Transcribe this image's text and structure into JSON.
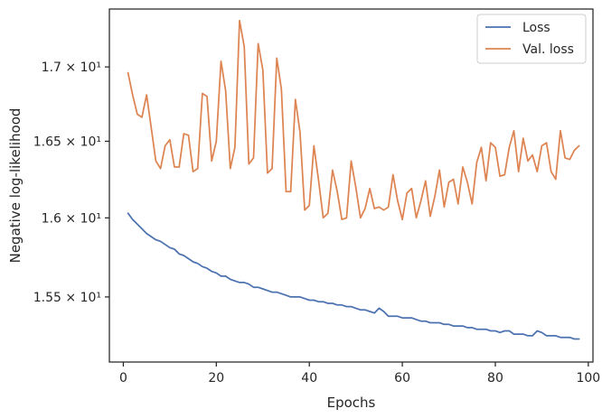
{
  "chart_data": {
    "type": "line",
    "xlabel": "Epochs",
    "ylabel": "Negative log-likelihood",
    "y_scale": "log",
    "xlim": [
      -3,
      101
    ],
    "ylim": [
      15.1,
      17.4
    ],
    "x_ticks": [
      0,
      20,
      40,
      60,
      80,
      100
    ],
    "y_ticks": [
      {
        "value": 15.5,
        "label": "1.55 × 10¹"
      },
      {
        "value": 16.0,
        "label": "1.6 × 10¹"
      },
      {
        "value": 16.5,
        "label": "1.65 × 10¹"
      },
      {
        "value": 17.0,
        "label": "1.7 × 10¹"
      }
    ],
    "grid": false,
    "legend": {
      "placement": "top-right"
    },
    "x": [
      1,
      2,
      3,
      4,
      5,
      6,
      7,
      8,
      9,
      10,
      11,
      12,
      13,
      14,
      15,
      16,
      17,
      18,
      19,
      20,
      21,
      22,
      23,
      24,
      25,
      26,
      27,
      28,
      29,
      30,
      31,
      32,
      33,
      34,
      35,
      36,
      37,
      38,
      39,
      40,
      41,
      42,
      43,
      44,
      45,
      46,
      47,
      48,
      49,
      50,
      51,
      52,
      53,
      54,
      55,
      56,
      57,
      58,
      59,
      60,
      61,
      62,
      63,
      64,
      65,
      66,
      67,
      68,
      69,
      70,
      71,
      72,
      73,
      74,
      75,
      76,
      77,
      78,
      79,
      80,
      81,
      82,
      83,
      84,
      85,
      86,
      87,
      88,
      89,
      90,
      91,
      92,
      93,
      94,
      95,
      96,
      97,
      98
    ],
    "series": [
      {
        "name": "Loss",
        "color": "#4c72b0",
        "values": [
          16.03,
          15.99,
          15.96,
          15.93,
          15.9,
          15.88,
          15.86,
          15.85,
          15.83,
          15.81,
          15.8,
          15.77,
          15.76,
          15.74,
          15.72,
          15.71,
          15.69,
          15.68,
          15.66,
          15.65,
          15.63,
          15.63,
          15.61,
          15.6,
          15.59,
          15.59,
          15.58,
          15.56,
          15.56,
          15.55,
          15.54,
          15.53,
          15.53,
          15.52,
          15.51,
          15.5,
          15.5,
          15.5,
          15.49,
          15.48,
          15.48,
          15.47,
          15.47,
          15.46,
          15.46,
          15.45,
          15.45,
          15.44,
          15.44,
          15.43,
          15.42,
          15.42,
          15.41,
          15.4,
          15.43,
          15.41,
          15.38,
          15.38,
          15.38,
          15.37,
          15.37,
          15.37,
          15.36,
          15.35,
          15.35,
          15.34,
          15.34,
          15.34,
          15.33,
          15.33,
          15.32,
          15.32,
          15.32,
          15.31,
          15.31,
          15.3,
          15.3,
          15.3,
          15.29,
          15.29,
          15.28,
          15.29,
          15.29,
          15.27,
          15.27,
          15.27,
          15.26,
          15.26,
          15.29,
          15.28,
          15.26,
          15.26,
          15.26,
          15.25,
          15.25,
          15.25,
          15.24,
          15.24
        ]
      },
      {
        "name": "Val. loss",
        "color": "#dd8452",
        "values": [
          16.96,
          16.81,
          16.68,
          16.66,
          16.81,
          16.59,
          16.37,
          16.32,
          16.47,
          16.51,
          16.33,
          16.33,
          16.55,
          16.54,
          16.3,
          16.32,
          16.82,
          16.8,
          16.37,
          16.5,
          17.04,
          16.84,
          16.32,
          16.46,
          17.32,
          17.14,
          16.35,
          16.39,
          17.16,
          16.98,
          16.29,
          16.32,
          17.06,
          16.85,
          16.17,
          16.17,
          16.78,
          16.56,
          16.05,
          16.08,
          16.47,
          16.24,
          16.0,
          16.03,
          16.31,
          16.17,
          15.99,
          16.0,
          16.37,
          16.2,
          16.0,
          16.06,
          16.19,
          16.06,
          16.07,
          16.05,
          16.07,
          16.28,
          16.11,
          15.99,
          16.16,
          16.19,
          16.0,
          16.11,
          16.24,
          16.01,
          16.14,
          16.31,
          16.07,
          16.23,
          16.25,
          16.09,
          16.33,
          16.23,
          16.09,
          16.36,
          16.46,
          16.24,
          16.49,
          16.46,
          16.27,
          16.28,
          16.46,
          16.57,
          16.3,
          16.52,
          16.37,
          16.41,
          16.3,
          16.47,
          16.49,
          16.3,
          16.25,
          16.57,
          16.39,
          16.38,
          16.44,
          16.47
        ]
      }
    ]
  }
}
